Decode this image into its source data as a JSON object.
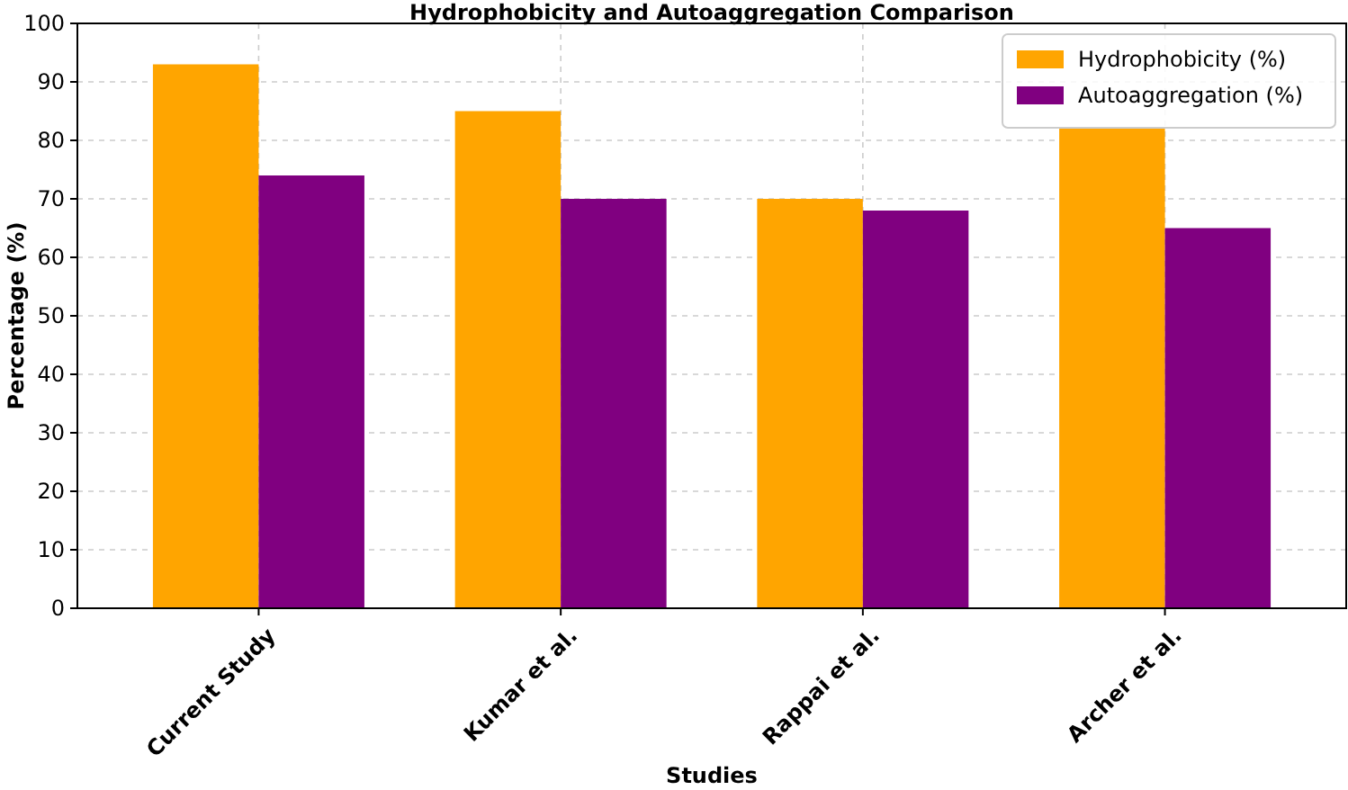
{
  "chart_data": {
    "type": "bar",
    "title": "Hydrophobicity and Autoaggregation Comparison",
    "xlabel": "Studies",
    "ylabel": "Percentage (%)",
    "categories": [
      "Current Study",
      "Kumar et al.",
      "Rappai et al.",
      "Archer et al."
    ],
    "series": [
      {
        "name": "Hydrophobicity (%)",
        "color": "#ffa500",
        "values": [
          93,
          85,
          70,
          82
        ]
      },
      {
        "name": "Autoaggregation (%)",
        "color": "#800080",
        "values": [
          74,
          70,
          68,
          65
        ]
      }
    ],
    "ylim": [
      0,
      100
    ],
    "yticks": [
      0,
      10,
      20,
      30,
      40,
      50,
      60,
      70,
      80,
      90,
      100
    ],
    "grid": true,
    "legend": "top right"
  }
}
